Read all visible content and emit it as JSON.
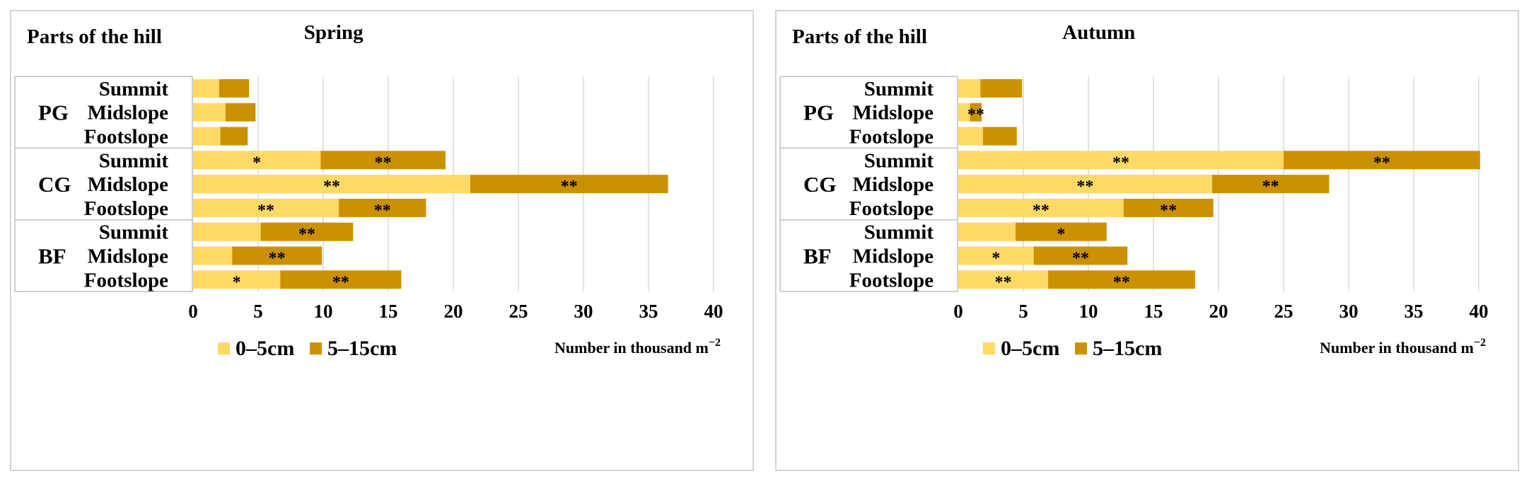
{
  "chart_data": [
    {
      "type": "bar",
      "orientation": "horizontal",
      "stacked": true,
      "title": "Spring",
      "ylabel": "Parts of the hill",
      "xlabel": "Number in thousand",
      "xlabel_unit": "m",
      "xlabel_sup": "−2",
      "xlim": [
        0,
        40
      ],
      "xticks": [
        0,
        5,
        10,
        15,
        20,
        25,
        30,
        35,
        40
      ],
      "groups": [
        "PG",
        "CG",
        "BF"
      ],
      "categories": [
        "Summit",
        "Midslope",
        "Footslope",
        "Summit",
        "Midslope",
        "Footslope",
        "Summit",
        "Midslope",
        "Footslope"
      ],
      "series": [
        {
          "name": "0–5cm",
          "color": "#FFD966",
          "values": [
            2.0,
            2.5,
            2.1,
            9.8,
            21.3,
            11.2,
            5.2,
            3.0,
            6.7
          ],
          "annotations": [
            "",
            "",
            "",
            "*",
            "**",
            "**",
            "",
            "",
            "*"
          ]
        },
        {
          "name": "5–15cm",
          "color": "#CC9100",
          "values": [
            2.3,
            2.3,
            2.1,
            9.6,
            15.2,
            6.7,
            7.1,
            6.9,
            9.3
          ],
          "annotations": [
            "",
            "",
            "",
            "**",
            "**",
            "**",
            "**",
            "**",
            "**"
          ]
        }
      ],
      "grid": true,
      "legend": "bottom-left"
    },
    {
      "type": "bar",
      "orientation": "horizontal",
      "stacked": true,
      "title": "Autumn",
      "ylabel": "Parts of the hill",
      "xlabel": "Number in thousand",
      "xlabel_unit": "m",
      "xlabel_sup": "−2",
      "xlim": [
        0,
        40
      ],
      "xticks": [
        0,
        5,
        10,
        15,
        20,
        25,
        30,
        35,
        40
      ],
      "groups": [
        "PG",
        "CG",
        "BF"
      ],
      "categories": [
        "Summit",
        "Midslope",
        "Footslope",
        "Summit",
        "Midslope",
        "Footslope",
        "Summit",
        "Midslope",
        "Footslope"
      ],
      "series": [
        {
          "name": "0–5cm",
          "color": "#FFD966",
          "values": [
            1.7,
            0.9,
            1.9,
            25.0,
            19.5,
            12.7,
            4.4,
            5.8,
            6.9
          ],
          "annotations": [
            "",
            "",
            "",
            "**",
            "**",
            "**",
            "",
            "*",
            "**"
          ]
        },
        {
          "name": "5–15cm",
          "color": "#CC9100",
          "values": [
            3.2,
            0.9,
            2.6,
            15.1,
            9.0,
            6.9,
            7.0,
            7.2,
            11.3
          ],
          "annotations": [
            "",
            "**",
            "",
            "**",
            "**",
            "**",
            "*",
            "**",
            "**"
          ]
        }
      ],
      "grid": true,
      "legend": "bottom-left"
    }
  ]
}
